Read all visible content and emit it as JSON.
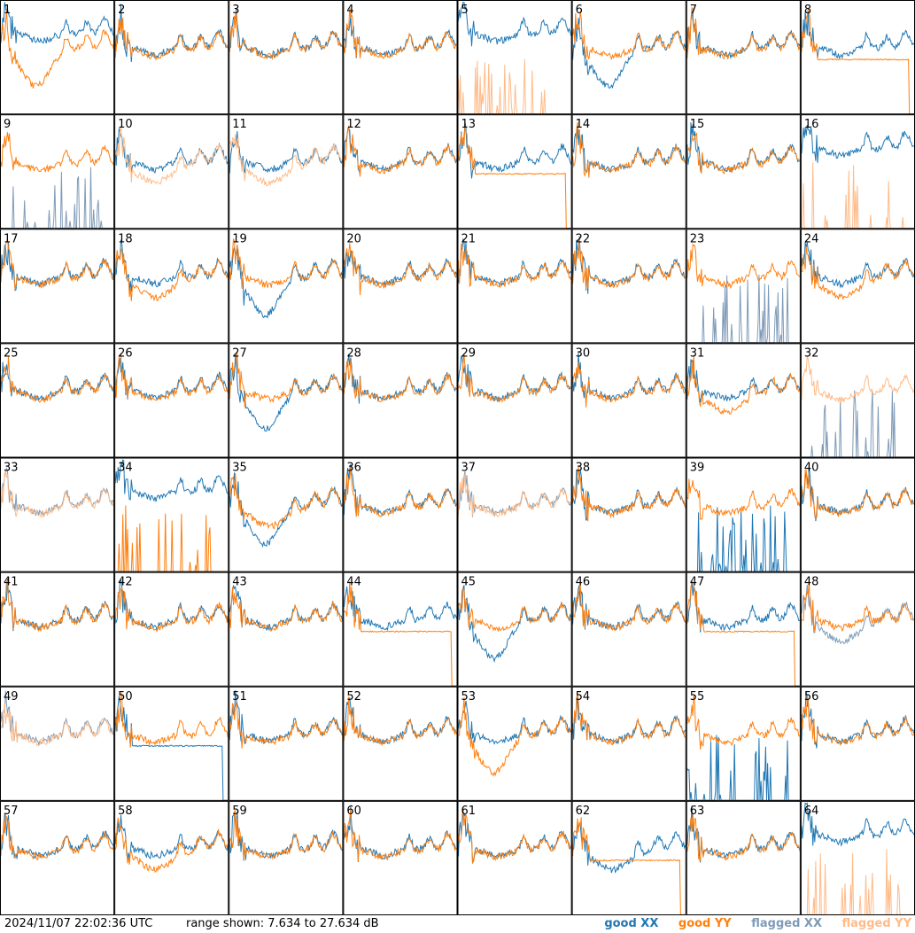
{
  "footer": {
    "timestamp": "2024/11/07 22:02:36 UTC",
    "range_text": "range shown: 7.634 to 27.634 dB"
  },
  "legend": {
    "good_xx": "good XX",
    "good_yy": "good YY",
    "flagged_xx": "flagged XX",
    "flagged_yy": "flagged YY"
  },
  "colors": {
    "good_xx": "#1f77b4",
    "good_yy": "#ff7f0e",
    "flagged_xx": "#7f9bb8",
    "flagged_yy": "#ffbb88"
  },
  "chart_data": {
    "type": "line",
    "grid": "8x8 small multiples",
    "ylim": [
      7.634,
      27.634
    ],
    "panels": [
      {
        "id": "1",
        "xx": "high",
        "yy": "dip_low",
        "xx_flag": false,
        "yy_flag": false
      },
      {
        "id": "2",
        "xx": "normal",
        "yy": "normal",
        "xx_flag": false,
        "yy_flag": false
      },
      {
        "id": "3",
        "xx": "normal",
        "yy": "normal",
        "xx_flag": false,
        "yy_flag": false
      },
      {
        "id": "4",
        "xx": "normal",
        "yy": "normal",
        "xx_flag": false,
        "yy_flag": false
      },
      {
        "id": "5",
        "xx": "high",
        "yy": "dead",
        "xx_flag": false,
        "yy_flag": true
      },
      {
        "id": "6",
        "xx": "dip_low",
        "yy": "normal",
        "xx_flag": false,
        "yy_flag": false
      },
      {
        "id": "7",
        "xx": "normal",
        "yy": "normal",
        "xx_flag": false,
        "yy_flag": false
      },
      {
        "id": "8",
        "xx": "normal",
        "yy": "flat",
        "xx_flag": false,
        "yy_flag": false
      },
      {
        "id": "9",
        "xx": "dead",
        "yy": "normal",
        "xx_flag": true,
        "yy_flag": false
      },
      {
        "id": "10",
        "xx": "normal",
        "yy": "dip",
        "xx_flag": false,
        "yy_flag": true
      },
      {
        "id": "11",
        "xx": "normal",
        "yy": "dip",
        "xx_flag": false,
        "yy_flag": true
      },
      {
        "id": "12",
        "xx": "normal",
        "yy": "normal",
        "xx_flag": false,
        "yy_flag": false
      },
      {
        "id": "13",
        "xx": "normal",
        "yy": "flat",
        "xx_flag": false,
        "yy_flag": false
      },
      {
        "id": "14",
        "xx": "normal",
        "yy": "normal",
        "xx_flag": false,
        "yy_flag": false
      },
      {
        "id": "15",
        "xx": "normal",
        "yy": "normal",
        "xx_flag": false,
        "yy_flag": false
      },
      {
        "id": "16",
        "xx": "high",
        "yy": "dead",
        "xx_flag": false,
        "yy_flag": true
      },
      {
        "id": "17",
        "xx": "normal",
        "yy": "normal",
        "xx_flag": false,
        "yy_flag": false
      },
      {
        "id": "18",
        "xx": "normal",
        "yy": "dip",
        "xx_flag": false,
        "yy_flag": false
      },
      {
        "id": "19",
        "xx": "dip_low",
        "yy": "normal",
        "xx_flag": false,
        "yy_flag": false
      },
      {
        "id": "20",
        "xx": "normal",
        "yy": "normal",
        "xx_flag": false,
        "yy_flag": false
      },
      {
        "id": "21",
        "xx": "normal",
        "yy": "normal",
        "xx_flag": false,
        "yy_flag": false
      },
      {
        "id": "22",
        "xx": "normal",
        "yy": "normal",
        "xx_flag": false,
        "yy_flag": false
      },
      {
        "id": "23",
        "xx": "dead",
        "yy": "normal",
        "xx_flag": true,
        "yy_flag": false
      },
      {
        "id": "24",
        "xx": "normal",
        "yy": "dip",
        "xx_flag": false,
        "yy_flag": false
      },
      {
        "id": "25",
        "xx": "normal",
        "yy": "normal",
        "xx_flag": false,
        "yy_flag": false
      },
      {
        "id": "26",
        "xx": "normal",
        "yy": "normal",
        "xx_flag": false,
        "yy_flag": false
      },
      {
        "id": "27",
        "xx": "dip_low",
        "yy": "normal",
        "xx_flag": false,
        "yy_flag": false
      },
      {
        "id": "28",
        "xx": "normal",
        "yy": "normal",
        "xx_flag": false,
        "yy_flag": false
      },
      {
        "id": "29",
        "xx": "normal",
        "yy": "normal",
        "xx_flag": false,
        "yy_flag": false
      },
      {
        "id": "30",
        "xx": "normal",
        "yy": "normal",
        "xx_flag": false,
        "yy_flag": false
      },
      {
        "id": "31",
        "xx": "normal",
        "yy": "dip",
        "xx_flag": false,
        "yy_flag": false
      },
      {
        "id": "32",
        "xx": "dead",
        "yy": "normal",
        "xx_flag": true,
        "yy_flag": true
      },
      {
        "id": "33",
        "xx": "normal",
        "yy": "normal",
        "xx_flag": true,
        "yy_flag": true
      },
      {
        "id": "34",
        "xx": "high",
        "yy": "dead",
        "xx_flag": false,
        "yy_flag": false
      },
      {
        "id": "35",
        "xx": "dip_low",
        "yy": "dip",
        "xx_flag": false,
        "yy_flag": false
      },
      {
        "id": "36",
        "xx": "normal",
        "yy": "normal",
        "xx_flag": false,
        "yy_flag": false
      },
      {
        "id": "37",
        "xx": "normal",
        "yy": "normal",
        "xx_flag": true,
        "yy_flag": true
      },
      {
        "id": "38",
        "xx": "normal",
        "yy": "normal",
        "xx_flag": false,
        "yy_flag": false
      },
      {
        "id": "39",
        "xx": "dead",
        "yy": "normal",
        "xx_flag": false,
        "yy_flag": false
      },
      {
        "id": "40",
        "xx": "normal",
        "yy": "normal",
        "xx_flag": false,
        "yy_flag": false
      },
      {
        "id": "41",
        "xx": "normal",
        "yy": "normal",
        "xx_flag": false,
        "yy_flag": false
      },
      {
        "id": "42",
        "xx": "normal",
        "yy": "normal",
        "xx_flag": false,
        "yy_flag": false
      },
      {
        "id": "43",
        "xx": "normal",
        "yy": "normal",
        "xx_flag": false,
        "yy_flag": false
      },
      {
        "id": "44",
        "xx": "normal",
        "yy": "flat",
        "xx_flag": false,
        "yy_flag": false
      },
      {
        "id": "45",
        "xx": "dip_low",
        "yy": "normal",
        "xx_flag": false,
        "yy_flag": false
      },
      {
        "id": "46",
        "xx": "normal",
        "yy": "normal",
        "xx_flag": false,
        "yy_flag": false
      },
      {
        "id": "47",
        "xx": "normal",
        "yy": "flat",
        "xx_flag": false,
        "yy_flag": false
      },
      {
        "id": "48",
        "xx": "dip",
        "yy": "normal",
        "xx_flag": true,
        "yy_flag": false
      },
      {
        "id": "49",
        "xx": "normal",
        "yy": "normal",
        "xx_flag": true,
        "yy_flag": true
      },
      {
        "id": "50",
        "xx": "flat",
        "yy": "normal",
        "xx_flag": false,
        "yy_flag": false
      },
      {
        "id": "51",
        "xx": "normal",
        "yy": "normal",
        "xx_flag": false,
        "yy_flag": false
      },
      {
        "id": "52",
        "xx": "normal",
        "yy": "normal",
        "xx_flag": false,
        "yy_flag": false
      },
      {
        "id": "53",
        "xx": "normal",
        "yy": "dip_low",
        "xx_flag": false,
        "yy_flag": false
      },
      {
        "id": "54",
        "xx": "normal",
        "yy": "normal",
        "xx_flag": false,
        "yy_flag": false
      },
      {
        "id": "55",
        "xx": "dead",
        "yy": "normal",
        "xx_flag": false,
        "yy_flag": false
      },
      {
        "id": "56",
        "xx": "normal",
        "yy": "normal",
        "xx_flag": false,
        "yy_flag": false
      },
      {
        "id": "57",
        "xx": "normal",
        "yy": "normal",
        "xx_flag": false,
        "yy_flag": false
      },
      {
        "id": "58",
        "xx": "normal",
        "yy": "dip",
        "xx_flag": false,
        "yy_flag": false
      },
      {
        "id": "59",
        "xx": "normal",
        "yy": "normal",
        "xx_flag": false,
        "yy_flag": false
      },
      {
        "id": "60",
        "xx": "normal",
        "yy": "normal",
        "xx_flag": false,
        "yy_flag": false
      },
      {
        "id": "61",
        "xx": "normal",
        "yy": "normal",
        "xx_flag": false,
        "yy_flag": false
      },
      {
        "id": "62",
        "xx": "dip",
        "yy": "flat",
        "xx_flag": false,
        "yy_flag": false
      },
      {
        "id": "63",
        "xx": "normal",
        "yy": "normal",
        "xx_flag": false,
        "yy_flag": false
      },
      {
        "id": "64",
        "xx": "high",
        "yy": "dead",
        "xx_flag": false,
        "yy_flag": true
      }
    ]
  }
}
